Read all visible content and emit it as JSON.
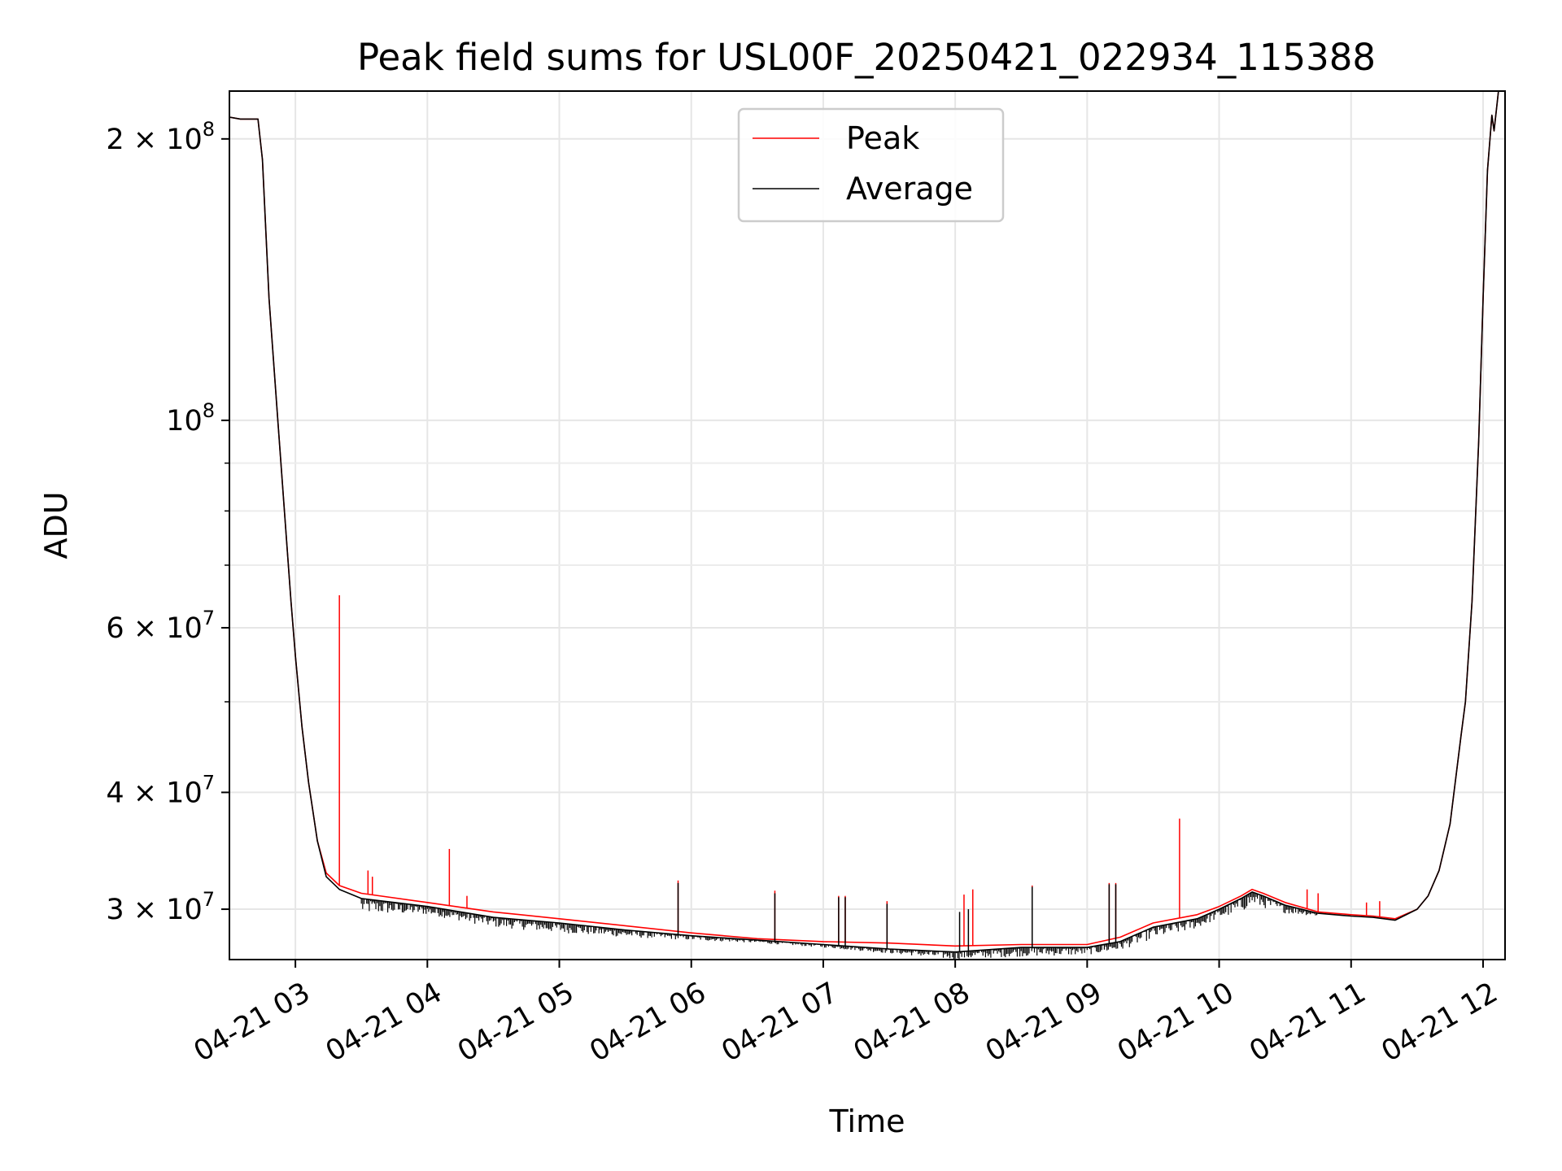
{
  "chart_data": {
    "type": "line",
    "title": "Peak field sums for USL00F_20250421_022934_115388",
    "xlabel": "Time",
    "ylabel": "ADU",
    "y_scale": "log",
    "xlim": [
      "2025-04-21 02:30",
      "2025-04-21 12:10"
    ],
    "ylim": [
      26500000,
      225000000
    ],
    "x_ticks": [
      {
        "t": "2025-04-21 03:00",
        "label": "04-21 03"
      },
      {
        "t": "2025-04-21 04:00",
        "label": "04-21 04"
      },
      {
        "t": "2025-04-21 05:00",
        "label": "04-21 05"
      },
      {
        "t": "2025-04-21 06:00",
        "label": "04-21 06"
      },
      {
        "t": "2025-04-21 07:00",
        "label": "04-21 07"
      },
      {
        "t": "2025-04-21 08:00",
        "label": "04-21 08"
      },
      {
        "t": "2025-04-21 09:00",
        "label": "04-21 09"
      },
      {
        "t": "2025-04-21 10:00",
        "label": "04-21 10"
      },
      {
        "t": "2025-04-21 11:00",
        "label": "04-21 11"
      },
      {
        "t": "2025-04-21 12:00",
        "label": "04-21 12"
      }
    ],
    "y_ticks": [
      {
        "value": 30000000,
        "mant": "3",
        "exp": "7"
      },
      {
        "value": 40000000,
        "mant": "4",
        "exp": "7"
      },
      {
        "value": 60000000,
        "mant": "6",
        "exp": "7"
      },
      {
        "value": 100000000,
        "mant": "",
        "exp": "8"
      },
      {
        "value": 200000000,
        "mant": "2",
        "exp": "8"
      }
    ],
    "y_minor_ticks": [
      50000000,
      70000000,
      80000000,
      90000000
    ],
    "grid": true,
    "legend_position": "top-center",
    "series": [
      {
        "name": "Peak",
        "color": "#ff0000",
        "points": [
          [
            "2025-04-21 02:30",
            211000000
          ],
          [
            "2025-04-21 02:35",
            210000000
          ],
          [
            "2025-04-21 02:43",
            210000000
          ],
          [
            "2025-04-21 02:45",
            190000000
          ],
          [
            "2025-04-21 02:48",
            135000000
          ],
          [
            "2025-04-21 02:52",
            100000000
          ],
          [
            "2025-04-21 02:55",
            80000000
          ],
          [
            "2025-04-21 02:58",
            64000000
          ],
          [
            "2025-04-21 03:00",
            56000000
          ],
          [
            "2025-04-21 03:03",
            47000000
          ],
          [
            "2025-04-21 03:06",
            41000000
          ],
          [
            "2025-04-21 03:10",
            35500000
          ],
          [
            "2025-04-21 03:14",
            32800000
          ],
          [
            "2025-04-21 03:20",
            31800000
          ],
          [
            "2025-04-21 03:30",
            31200000
          ],
          [
            "2025-04-21 04:00",
            30500000
          ],
          [
            "2025-04-21 04:30",
            29800000
          ],
          [
            "2025-04-21 05:00",
            29300000
          ],
          [
            "2025-04-21 05:30",
            28800000
          ],
          [
            "2025-04-21 06:00",
            28300000
          ],
          [
            "2025-04-21 06:30",
            27900000
          ],
          [
            "2025-04-21 07:00",
            27700000
          ],
          [
            "2025-04-21 07:30",
            27600000
          ],
          [
            "2025-04-21 08:00",
            27400000
          ],
          [
            "2025-04-21 08:30",
            27500000
          ],
          [
            "2025-04-21 09:00",
            27500000
          ],
          [
            "2025-04-21 09:15",
            28000000
          ],
          [
            "2025-04-21 09:30",
            29000000
          ],
          [
            "2025-04-21 09:50",
            29600000
          ],
          [
            "2025-04-21 10:00",
            30200000
          ],
          [
            "2025-04-21 10:10",
            31000000
          ],
          [
            "2025-04-21 10:15",
            31500000
          ],
          [
            "2025-04-21 10:20",
            31200000
          ],
          [
            "2025-04-21 10:30",
            30500000
          ],
          [
            "2025-04-21 10:45",
            29800000
          ],
          [
            "2025-04-21 11:00",
            29600000
          ],
          [
            "2025-04-21 11:10",
            29500000
          ],
          [
            "2025-04-21 11:20",
            29300000
          ],
          [
            "2025-04-21 11:30",
            30000000
          ],
          [
            "2025-04-21 11:35",
            31000000
          ],
          [
            "2025-04-21 11:40",
            33000000
          ],
          [
            "2025-04-21 11:45",
            37000000
          ],
          [
            "2025-04-21 11:50",
            46000000
          ],
          [
            "2025-04-21 11:52",
            50000000
          ],
          [
            "2025-04-21 11:55",
            64000000
          ],
          [
            "2025-04-21 11:58",
            95000000
          ],
          [
            "2025-04-21 12:00",
            135000000
          ],
          [
            "2025-04-21 12:02",
            185000000
          ],
          [
            "2025-04-21 12:04",
            212000000
          ],
          [
            "2025-04-21 12:05",
            204000000
          ],
          [
            "2025-04-21 12:07",
            225000000
          ]
        ],
        "spikes": [
          [
            "2025-04-21 03:20",
            65000000
          ],
          [
            "2025-04-21 03:33",
            33000000
          ],
          [
            "2025-04-21 03:35",
            32500000
          ],
          [
            "2025-04-21 04:10",
            34800000
          ],
          [
            "2025-04-21 04:18",
            31000000
          ],
          [
            "2025-04-21 05:54",
            32200000
          ],
          [
            "2025-04-21 06:38",
            31400000
          ],
          [
            "2025-04-21 07:07",
            31000000
          ],
          [
            "2025-04-21 07:10",
            31000000
          ],
          [
            "2025-04-21 07:29",
            30600000
          ],
          [
            "2025-04-21 08:04",
            31100000
          ],
          [
            "2025-04-21 08:08",
            31500000
          ],
          [
            "2025-04-21 08:35",
            31800000
          ],
          [
            "2025-04-21 09:10",
            32000000
          ],
          [
            "2025-04-21 09:13",
            32000000
          ],
          [
            "2025-04-21 09:42",
            37500000
          ],
          [
            "2025-04-21 10:40",
            31500000
          ],
          [
            "2025-04-21 10:45",
            31200000
          ],
          [
            "2025-04-21 11:07",
            30500000
          ],
          [
            "2025-04-21 11:13",
            30600000
          ]
        ]
      },
      {
        "name": "Average",
        "color": "#000000",
        "points": [
          [
            "2025-04-21 02:30",
            211000000
          ],
          [
            "2025-04-21 02:35",
            210000000
          ],
          [
            "2025-04-21 02:43",
            210000000
          ],
          [
            "2025-04-21 02:45",
            190000000
          ],
          [
            "2025-04-21 02:48",
            135000000
          ],
          [
            "2025-04-21 02:52",
            100000000
          ],
          [
            "2025-04-21 02:55",
            80000000
          ],
          [
            "2025-04-21 02:58",
            64000000
          ],
          [
            "2025-04-21 03:00",
            56000000
          ],
          [
            "2025-04-21 03:03",
            47000000
          ],
          [
            "2025-04-21 03:06",
            41000000
          ],
          [
            "2025-04-21 03:10",
            35500000
          ],
          [
            "2025-04-21 03:14",
            32500000
          ],
          [
            "2025-04-21 03:20",
            31500000
          ],
          [
            "2025-04-21 03:30",
            30800000
          ],
          [
            "2025-04-21 04:00",
            30200000
          ],
          [
            "2025-04-21 04:30",
            29400000
          ],
          [
            "2025-04-21 05:00",
            29000000
          ],
          [
            "2025-04-21 05:30",
            28500000
          ],
          [
            "2025-04-21 06:00",
            28100000
          ],
          [
            "2025-04-21 06:30",
            27800000
          ],
          [
            "2025-04-21 07:00",
            27500000
          ],
          [
            "2025-04-21 07:30",
            27200000
          ],
          [
            "2025-04-21 08:00",
            27000000
          ],
          [
            "2025-04-21 08:30",
            27300000
          ],
          [
            "2025-04-21 09:00",
            27300000
          ],
          [
            "2025-04-21 09:15",
            27700000
          ],
          [
            "2025-04-21 09:30",
            28700000
          ],
          [
            "2025-04-21 09:50",
            29300000
          ],
          [
            "2025-04-21 10:00",
            30000000
          ],
          [
            "2025-04-21 10:10",
            30800000
          ],
          [
            "2025-04-21 10:15",
            31300000
          ],
          [
            "2025-04-21 10:20",
            31000000
          ],
          [
            "2025-04-21 10:30",
            30300000
          ],
          [
            "2025-04-21 10:45",
            29700000
          ],
          [
            "2025-04-21 11:00",
            29500000
          ],
          [
            "2025-04-21 11:10",
            29400000
          ],
          [
            "2025-04-21 11:20",
            29200000
          ],
          [
            "2025-04-21 11:30",
            30000000
          ],
          [
            "2025-04-21 11:35",
            31000000
          ],
          [
            "2025-04-21 11:40",
            33000000
          ],
          [
            "2025-04-21 11:45",
            37000000
          ],
          [
            "2025-04-21 11:50",
            46000000
          ],
          [
            "2025-04-21 11:52",
            50000000
          ],
          [
            "2025-04-21 11:55",
            64000000
          ],
          [
            "2025-04-21 11:58",
            95000000
          ],
          [
            "2025-04-21 12:00",
            135000000
          ],
          [
            "2025-04-21 12:02",
            185000000
          ],
          [
            "2025-04-21 12:04",
            212000000
          ],
          [
            "2025-04-21 12:05",
            204000000
          ],
          [
            "2025-04-21 12:07",
            225000000
          ]
        ],
        "spikes": [
          [
            "2025-04-21 05:54",
            32000000
          ],
          [
            "2025-04-21 06:38",
            31200000
          ],
          [
            "2025-04-21 07:07",
            30900000
          ],
          [
            "2025-04-21 07:10",
            30900000
          ],
          [
            "2025-04-21 07:29",
            30400000
          ],
          [
            "2025-04-21 08:02",
            29800000
          ],
          [
            "2025-04-21 08:06",
            30000000
          ],
          [
            "2025-04-21 08:35",
            31700000
          ],
          [
            "2025-04-21 09:10",
            31900000
          ],
          [
            "2025-04-21 09:13",
            31900000
          ]
        ],
        "noise_band": [
          [
            "2025-04-21 03:30",
            29700000
          ],
          [
            "2025-04-21 04:00",
            29600000
          ],
          [
            "2025-04-21 04:30",
            28700000
          ],
          [
            "2025-04-21 05:00",
            28300000
          ],
          [
            "2025-04-21 05:30",
            28000000
          ],
          [
            "2025-04-21 06:00",
            27800000
          ],
          [
            "2025-04-21 06:30",
            27600000
          ],
          [
            "2025-04-21 07:00",
            27300000
          ],
          [
            "2025-04-21 07:30",
            26900000
          ],
          [
            "2025-04-21 08:00",
            26500000
          ],
          [
            "2025-04-21 08:30",
            26700000
          ],
          [
            "2025-04-21 09:00",
            26800000
          ],
          [
            "2025-04-21 09:15",
            27100000
          ],
          [
            "2025-04-21 09:30",
            27900000
          ],
          [
            "2025-04-21 09:50",
            28600000
          ],
          [
            "2025-04-21 10:00",
            29300000
          ],
          [
            "2025-04-21 10:10",
            29800000
          ],
          [
            "2025-04-21 10:15",
            30300000
          ],
          [
            "2025-04-21 10:20",
            30100000
          ],
          [
            "2025-04-21 10:30",
            29700000
          ],
          [
            "2025-04-21 10:45",
            29500000
          ]
        ]
      }
    ]
  }
}
